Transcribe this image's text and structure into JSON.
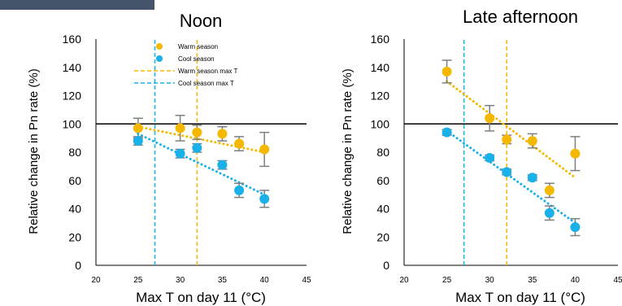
{
  "colors": {
    "warm": "#f5b800",
    "cool": "#1ab0e8",
    "error": "#7f7f7f",
    "axis": "#000000",
    "corner_block": "#44546a"
  },
  "chart_data": [
    {
      "type": "scatter",
      "title": "Noon",
      "xlabel": "Max T on day 11 (°C)",
      "ylabel": "Relative change in Pn rate (%)",
      "xlim": [
        20,
        45
      ],
      "ylim": [
        0,
        160
      ],
      "xticks": [
        20,
        25,
        30,
        35,
        40,
        45
      ],
      "yticks": [
        0,
        20,
        40,
        60,
        80,
        100,
        120,
        140,
        160
      ],
      "reference_line_y": 100,
      "legend": {
        "placement": "top-center",
        "entries": [
          "Warm season",
          "Cool season",
          "Warm season max T",
          "Cool season max T"
        ]
      },
      "series": [
        {
          "name": "Warm season",
          "color_key": "warm",
          "points": [
            {
              "x": 25,
              "y": 97,
              "err": 7
            },
            {
              "x": 30,
              "y": 97,
              "err": 9
            },
            {
              "x": 32,
              "y": 94,
              "err": 5
            },
            {
              "x": 35,
              "y": 93,
              "err": 5
            },
            {
              "x": 37,
              "y": 86,
              "err": 5
            },
            {
              "x": 40,
              "y": 82,
              "err": 12
            }
          ],
          "trend": {
            "x0": 25,
            "y0": 98,
            "x1": 40,
            "y1": 80
          }
        },
        {
          "name": "Cool season",
          "color_key": "cool",
          "points": [
            {
              "x": 25,
              "y": 88,
              "err": 3
            },
            {
              "x": 30,
              "y": 79,
              "err": 3
            },
            {
              "x": 32,
              "y": 83,
              "err": 3
            },
            {
              "x": 35,
              "y": 71,
              "err": 3
            },
            {
              "x": 37,
              "y": 53,
              "err": 5
            },
            {
              "x": 40,
              "y": 47,
              "err": 6
            }
          ],
          "trend": {
            "x0": 25,
            "y0": 93,
            "x1": 40,
            "y1": 50
          }
        }
      ],
      "vlines": [
        {
          "name": "Warm season max T",
          "x": 32,
          "color_key": "warm"
        },
        {
          "name": "Cool season max T",
          "x": 27,
          "color_key": "cool"
        }
      ]
    },
    {
      "type": "scatter",
      "title": "Late afternoon",
      "xlabel": "Max T on day 11 (°C)",
      "ylabel": "Relative change in Pn rate (%)",
      "xlim": [
        20,
        45
      ],
      "ylim": [
        0,
        160
      ],
      "xticks": [
        20,
        25,
        30,
        35,
        40,
        45
      ],
      "yticks": [
        0,
        20,
        40,
        60,
        80,
        100,
        120,
        140,
        160
      ],
      "reference_line_y": 100,
      "series": [
        {
          "name": "Warm season",
          "color_key": "warm",
          "points": [
            {
              "x": 25,
              "y": 137,
              "err": 8
            },
            {
              "x": 30,
              "y": 104,
              "err": 9
            },
            {
              "x": 32,
              "y": 89,
              "err": 3
            },
            {
              "x": 35,
              "y": 88,
              "err": 5
            },
            {
              "x": 37,
              "y": 53,
              "err": 5
            },
            {
              "x": 40,
              "y": 79,
              "err": 12
            }
          ],
          "trend": {
            "x0": 25,
            "y0": 130,
            "x1": 40,
            "y1": 62
          }
        },
        {
          "name": "Cool season",
          "color_key": "cool",
          "points": [
            {
              "x": 25,
              "y": 94,
              "err": 2
            },
            {
              "x": 30,
              "y": 76,
              "err": 2
            },
            {
              "x": 32,
              "y": 66,
              "err": 2
            },
            {
              "x": 35,
              "y": 62,
              "err": 2
            },
            {
              "x": 37,
              "y": 37,
              "err": 5
            },
            {
              "x": 40,
              "y": 27,
              "err": 6
            }
          ],
          "trend": {
            "x0": 25,
            "y0": 95,
            "x1": 40,
            "y1": 30
          }
        }
      ],
      "vlines": [
        {
          "name": "Warm season max T",
          "x": 32,
          "color_key": "warm"
        },
        {
          "name": "Cool season max T",
          "x": 27,
          "color_key": "cool"
        }
      ]
    }
  ]
}
